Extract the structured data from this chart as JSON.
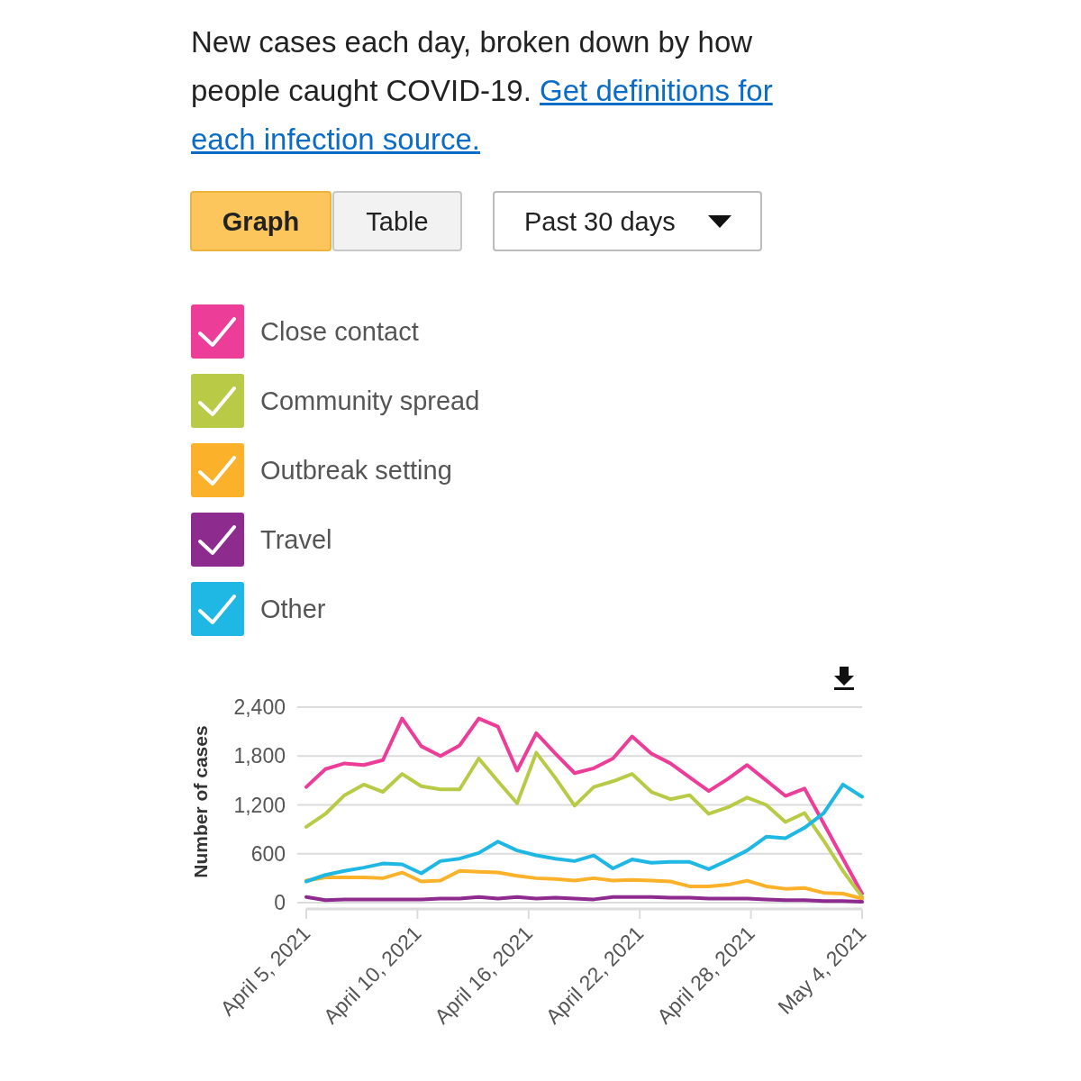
{
  "chart_data": {
    "type": "line",
    "title": "New cases each day, broken down by how people caught COVID-19.",
    "subtitle": "Get definitions for each infection source.",
    "ylabel": "Number of cases",
    "annotations": [
      "Graph",
      "Table",
      "Past 30 days"
    ],
    "x": [
      "2021-04-05",
      "2021-04-06",
      "2021-04-07",
      "2021-04-08",
      "2021-04-09",
      "2021-04-10",
      "2021-04-11",
      "2021-04-12",
      "2021-04-13",
      "2021-04-14",
      "2021-04-15",
      "2021-04-16",
      "2021-04-17",
      "2021-04-18",
      "2021-04-19",
      "2021-04-20",
      "2021-04-21",
      "2021-04-22",
      "2021-04-23",
      "2021-04-24",
      "2021-04-25",
      "2021-04-26",
      "2021-04-27",
      "2021-04-28",
      "2021-04-29",
      "2021-04-30",
      "2021-05-01",
      "2021-05-02",
      "2021-05-03",
      "2021-05-04"
    ],
    "series": [
      {
        "name": "Close contact",
        "color": "#ec3d98",
        "values": [
          1420,
          1640,
          1710,
          1690,
          1750,
          2260,
          1920,
          1800,
          1930,
          2260,
          2160,
          1620,
          2080,
          1830,
          1590,
          1650,
          1770,
          2040,
          1830,
          1710,
          1540,
          1370,
          1520,
          1690,
          1500,
          1310,
          1400,
          970,
          540,
          110
        ]
      },
      {
        "name": "Community spread",
        "color": "#b9ca46",
        "values": [
          930,
          1090,
          1320,
          1450,
          1360,
          1580,
          1430,
          1390,
          1390,
          1770,
          1490,
          1220,
          1840,
          1530,
          1190,
          1420,
          1490,
          1580,
          1360,
          1270,
          1320,
          1090,
          1170,
          1290,
          1200,
          990,
          1100,
          760,
          390,
          70
        ]
      },
      {
        "name": "Outbreak setting",
        "color": "#fbb22a",
        "values": [
          270,
          310,
          310,
          310,
          300,
          370,
          260,
          270,
          390,
          380,
          370,
          330,
          300,
          290,
          270,
          300,
          270,
          280,
          270,
          260,
          200,
          200,
          220,
          270,
          200,
          170,
          180,
          120,
          110,
          50
        ]
      },
      {
        "name": "Travel",
        "color": "#8e2b8f",
        "values": [
          70,
          30,
          40,
          40,
          40,
          40,
          40,
          50,
          50,
          70,
          50,
          70,
          50,
          60,
          50,
          40,
          70,
          70,
          70,
          60,
          60,
          50,
          50,
          50,
          40,
          30,
          30,
          20,
          20,
          10
        ]
      },
      {
        "name": "Other",
        "color": "#1fb7e3",
        "values": [
          260,
          340,
          390,
          430,
          480,
          470,
          360,
          510,
          540,
          610,
          750,
          640,
          580,
          540,
          510,
          580,
          420,
          530,
          490,
          500,
          500,
          410,
          520,
          640,
          810,
          790,
          920,
          1100,
          1450,
          1300
        ]
      }
    ],
    "xlim": [
      "2021-04-05",
      "2021-05-04"
    ],
    "xticks": [
      {
        "value": "2021-04-05",
        "label": "April 5, 2021"
      },
      {
        "value": "2021-04-10T19:12",
        "label": "April 10, 2021"
      },
      {
        "value": "2021-04-16T14:24",
        "label": "April 16, 2021"
      },
      {
        "value": "2021-04-22T09:36",
        "label": "April 22, 2021"
      },
      {
        "value": "2021-04-28T04:48",
        "label": "April 28, 2021"
      },
      {
        "value": "2021-05-04",
        "label": "May 4, 2021"
      }
    ],
    "ylim": [
      0,
      2400
    ],
    "yticks": [
      {
        "value": 0,
        "label": "0"
      },
      {
        "value": 600,
        "label": "600"
      },
      {
        "value": 1200,
        "label": "1,200"
      },
      {
        "value": 1800,
        "label": "1,800"
      },
      {
        "value": 2400,
        "label": "2,400"
      }
    ],
    "grid": "y",
    "legend": "top"
  }
}
